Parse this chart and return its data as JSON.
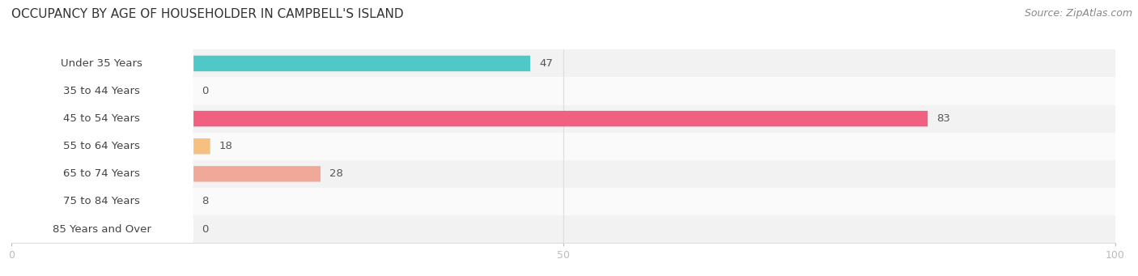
{
  "title": "OCCUPANCY BY AGE OF HOUSEHOLDER IN CAMPBELL'S ISLAND",
  "source": "Source: ZipAtlas.com",
  "categories": [
    "Under 35 Years",
    "35 to 44 Years",
    "45 to 54 Years",
    "55 to 64 Years",
    "65 to 74 Years",
    "75 to 84 Years",
    "85 Years and Over"
  ],
  "values": [
    47,
    0,
    83,
    18,
    28,
    8,
    0
  ],
  "bar_colors": [
    "#50c8c8",
    "#aaaadd",
    "#f06080",
    "#f5c080",
    "#f0a898",
    "#a8b8e0",
    "#cc99cc"
  ],
  "row_bg_even": "#f2f2f2",
  "row_bg_odd": "#fafafa",
  "xlim": [
    0,
    100
  ],
  "bar_height": 0.55,
  "label_pill_color": "#ffffff",
  "label_color": "#444444",
  "value_color": "#555555",
  "title_fontsize": 11,
  "label_fontsize": 9.5,
  "value_fontsize": 9.5,
  "tick_fontsize": 9,
  "source_fontsize": 9,
  "background_color": "#ffffff",
  "grid_color": "#dddddd"
}
